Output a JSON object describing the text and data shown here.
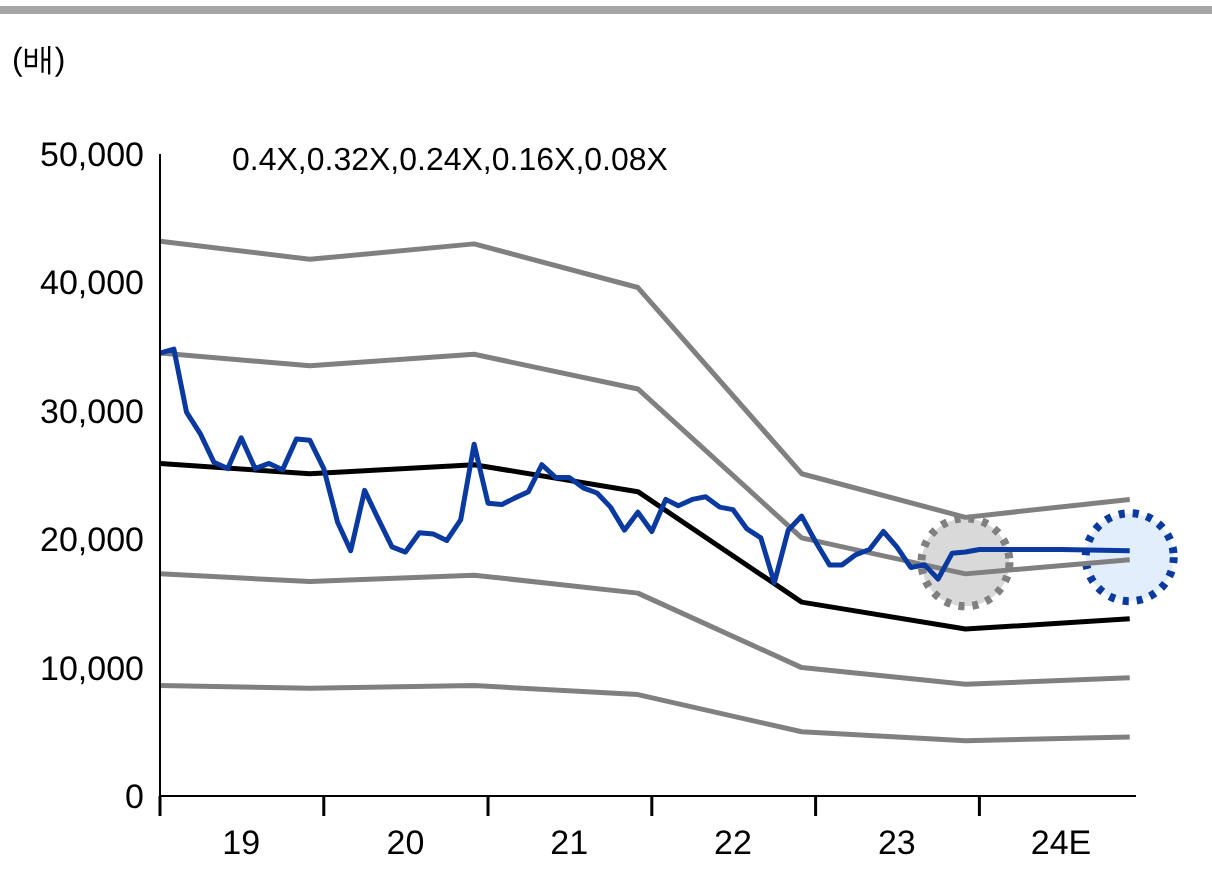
{
  "chart_data": {
    "type": "line",
    "ylabel": "(배)",
    "annotations": [
      "0.4X,0.32X,0.24X,0.16X,0.08X"
    ],
    "xlim": [
      "2019-01",
      "2024-12-15"
    ],
    "xticks": [
      {
        "value": "2019-01",
        "label": null
      },
      {
        "value": "2019-07",
        "label": "19"
      },
      {
        "value": "2020-01",
        "label": null
      },
      {
        "value": "2020-07",
        "label": "20"
      },
      {
        "value": "2021-01",
        "label": null
      },
      {
        "value": "2021-07",
        "label": "21"
      },
      {
        "value": "2022-01",
        "label": null
      },
      {
        "value": "2022-07",
        "label": "22"
      },
      {
        "value": "2023-01",
        "label": null
      },
      {
        "value": "2023-07",
        "label": "23"
      },
      {
        "value": "2024-01",
        "label": null
      },
      {
        "value": "2024-07",
        "label": "24E"
      }
    ],
    "ylim": [
      0,
      50000
    ],
    "yticks": [
      0,
      {
        "value": 10000,
        "label": "10,000"
      },
      {
        "value": 20000,
        "label": "20,000"
      },
      {
        "value": 30000,
        "label": "30,000"
      },
      {
        "value": 40000,
        "label": "40,000"
      },
      {
        "value": 50000,
        "label": "50,000"
      }
    ],
    "marker": "none",
    "line_style": "solid",
    "series": [
      {
        "color": "#808080",
        "x": [
          "2019-01",
          "2019-12",
          "2020-12",
          "2021-12",
          "2022-12",
          "2023-12",
          "2024-12"
        ],
        "values": [
          43200,
          41800,
          43000,
          39600,
          25100,
          21700,
          23100
        ]
      },
      {
        "color": "#808080",
        "x": [
          "2019-01",
          "2019-12",
          "2020-12",
          "2021-12",
          "2022-12",
          "2023-12",
          "2024-12"
        ],
        "values": [
          34500,
          33500,
          34400,
          31700,
          20100,
          17300,
          18400
        ]
      },
      {
        "color": "#000000",
        "x": [
          "2019-01",
          "2019-12",
          "2020-12",
          "2021-12",
          "2022-12",
          "2023-12",
          "2024-12"
        ],
        "values": [
          25900,
          25100,
          25800,
          23700,
          15100,
          13000,
          13800
        ]
      },
      {
        "color": "#808080",
        "x": [
          "2019-01",
          "2019-12",
          "2020-12",
          "2021-12",
          "2022-12",
          "2023-12",
          "2024-12"
        ],
        "values": [
          17300,
          16700,
          17200,
          15800,
          10000,
          8700,
          9200
        ]
      },
      {
        "color": "#808080",
        "x": [
          "2019-01",
          "2019-12",
          "2020-12",
          "2021-12",
          "2022-12",
          "2023-12",
          "2024-12"
        ],
        "values": [
          8600,
          8400,
          8600,
          7900,
          5000,
          4300,
          4600
        ]
      },
      {
        "color": "#0a3aa0",
        "x": [
          "2019-01",
          "2019-02",
          "2019-03",
          "2019-04",
          "2019-05",
          "2019-06",
          "2019-07",
          "2019-08",
          "2019-09",
          "2019-10",
          "2019-11",
          "2019-12",
          "2020-01",
          "2020-02",
          "2020-03",
          "2020-04",
          "2020-05",
          "2020-06",
          "2020-07",
          "2020-08",
          "2020-09",
          "2020-10",
          "2020-11",
          "2020-12",
          "2021-01",
          "2021-02",
          "2021-03",
          "2021-04",
          "2021-05",
          "2021-06",
          "2021-07",
          "2021-08",
          "2021-09",
          "2021-10",
          "2021-11",
          "2021-12",
          "2022-01",
          "2022-02",
          "2022-03",
          "2022-04",
          "2022-05",
          "2022-06",
          "2022-07",
          "2022-08",
          "2022-09",
          "2022-10",
          "2022-11",
          "2022-12",
          "2023-01",
          "2023-02",
          "2023-03",
          "2023-04",
          "2023-05",
          "2023-06",
          "2023-07",
          "2023-08",
          "2023-09",
          "2023-10",
          "2023-11",
          "2023-12",
          "2024-01",
          "2024-02",
          "2024-07",
          "2024-12"
        ],
        "values": [
          34500,
          34800,
          29900,
          28200,
          26000,
          25500,
          27900,
          25500,
          25900,
          25400,
          27800,
          27700,
          25500,
          21300,
          19100,
          23800,
          21600,
          19400,
          19000,
          20500,
          20400,
          19900,
          21500,
          27400,
          22800,
          22700,
          23200,
          23700,
          25800,
          24800,
          24800,
          24000,
          23600,
          22500,
          20700,
          22100,
          20600,
          23100,
          22600,
          23100,
          23300,
          22500,
          22300,
          20800,
          20100,
          16600,
          20700,
          21800,
          19800,
          18000,
          18000,
          18800,
          19200,
          20600,
          19400,
          17800,
          18000,
          16900,
          18900,
          19000,
          19200,
          19200,
          19200,
          19100
        ]
      }
    ]
  }
}
